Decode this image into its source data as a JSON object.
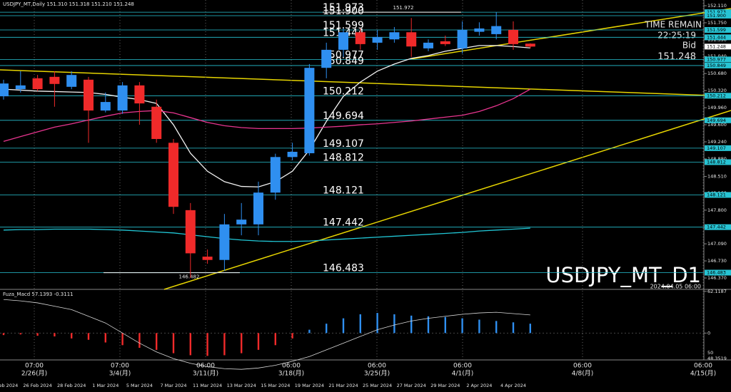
{
  "chart_data": [
    {
      "type": "candlestick",
      "title": "USDJPY_MT,Daily",
      "last_labels": [
        "151.310",
        "151.318",
        "151.210",
        "151.248"
      ],
      "categories": [
        "22 Feb 2024",
        null,
        "26 Feb 2024",
        null,
        "28 Feb 2024",
        null,
        "1 Mar 2024",
        null,
        "5 Mar 2024",
        null,
        "7 Mar 2024",
        null,
        "11 Mar 2024",
        null,
        "13 Mar 2024",
        null,
        "15 Mar 2024",
        null,
        "19 Mar 2024",
        null,
        "21 Mar 2024",
        null,
        "25 Mar 2024",
        null,
        "27 Mar 2024",
        null,
        "29 Mar 2024",
        null,
        "2 Apr 2024",
        null,
        "4 Apr 2024",
        null
      ],
      "open": [
        150.2,
        150.35,
        150.58,
        150.61,
        150.4,
        150.55,
        149.9,
        149.9,
        150.43,
        149.98,
        149.22,
        147.8,
        146.82,
        146.75,
        147.5,
        147.5,
        148.17,
        148.92,
        149.0,
        150.8,
        151.18,
        151.55,
        151.33,
        151.4,
        151.55,
        151.21,
        151.36,
        151.21,
        151.56,
        151.51,
        151.6,
        151.31
      ],
      "high": [
        150.55,
        150.73,
        150.65,
        150.73,
        150.73,
        150.61,
        150.28,
        150.5,
        150.5,
        150.13,
        149.3,
        147.95,
        146.97,
        147.72,
        147.95,
        148.4,
        148.99,
        149.22,
        150.88,
        151.33,
        151.63,
        151.63,
        151.6,
        151.66,
        151.85,
        151.4,
        151.48,
        151.78,
        151.76,
        151.97,
        151.78,
        151.318
      ],
      "low": [
        150.13,
        150.28,
        150.31,
        149.98,
        150.35,
        149.22,
        149.86,
        149.83,
        149.6,
        149.22,
        147.72,
        146.37,
        146.67,
        146.52,
        147.27,
        147.27,
        148.02,
        148.85,
        148.95,
        150.58,
        151.03,
        151.18,
        151.18,
        151.33,
        151.03,
        151.15,
        151.26,
        151.1,
        151.48,
        151.4,
        151.18,
        151.21
      ],
      "close": [
        150.47,
        150.43,
        150.35,
        150.46,
        150.65,
        149.9,
        150.08,
        150.43,
        150.05,
        149.3,
        147.87,
        146.89,
        146.75,
        147.5,
        147.6,
        148.17,
        148.92,
        149.03,
        150.8,
        151.18,
        151.55,
        151.3,
        151.45,
        151.55,
        151.25,
        151.33,
        151.3,
        151.6,
        151.63,
        151.68,
        151.3,
        151.248
      ],
      "up_color": "#2f8ff0",
      "down_color": "#f02a2a",
      "ylim": [
        146.13,
        152.23
      ],
      "yticks": [
        {
          "value": 152.11,
          "label": "152.110"
        },
        {
          "value": 151.75,
          "label": "151.750"
        },
        {
          "value": 151.39,
          "label": "151.390"
        },
        {
          "value": 151.04,
          "label": "151.040"
        },
        {
          "value": 150.68,
          "label": "150.680"
        },
        {
          "value": 150.32,
          "label": "150.320"
        },
        {
          "value": 149.96,
          "label": "149.960"
        },
        {
          "value": 149.6,
          "label": "149.600"
        },
        {
          "value": 149.24,
          "label": "149.240"
        },
        {
          "value": 148.88,
          "label": "148.880"
        },
        {
          "value": 148.51,
          "label": "148.510"
        },
        {
          "value": 148.16,
          "label": "148.160"
        },
        {
          "value": 147.8,
          "label": "147.800"
        },
        {
          "value": 147.44,
          "label": "147.440"
        },
        {
          "value": 147.09,
          "label": "147.090"
        },
        {
          "value": 146.73,
          "label": "146.730"
        },
        {
          "value": 146.37,
          "label": "146.370"
        }
      ],
      "levels": [
        151.973,
        {
          "value": 151.9,
          "label": "151.900"
        },
        151.599,
        151.444,
        150.977,
        150.849,
        150.212,
        149.694,
        149.107,
        148.812,
        148.121,
        147.442,
        146.483
      ],
      "level_color": "#27c4d4",
      "lines": [
        {
          "color": "#f2f2f2",
          "values": [
            150.35,
            150.33,
            150.31,
            150.3,
            150.29,
            150.28,
            150.24,
            150.18,
            150.13,
            150.05,
            149.6,
            149.0,
            148.62,
            148.4,
            148.3,
            148.29,
            148.4,
            148.62,
            149.07,
            149.67,
            150.2,
            150.5,
            150.73,
            150.88,
            151.0,
            151.06,
            151.15,
            151.21,
            151.27,
            151.27,
            151.25,
            151.22
          ]
        },
        {
          "color": "#e8358f",
          "values": [
            149.25,
            149.35,
            149.45,
            149.55,
            149.62,
            149.7,
            149.78,
            149.85,
            149.88,
            149.9,
            149.85,
            149.75,
            149.65,
            149.58,
            149.54,
            149.52,
            149.52,
            149.52,
            149.53,
            149.55,
            149.57,
            149.6,
            149.62,
            149.65,
            149.68,
            149.72,
            149.76,
            149.8,
            149.88,
            150.0,
            150.15,
            150.35
          ]
        },
        {
          "color": "#21c7d6",
          "values": [
            147.38,
            147.39,
            147.39,
            147.4,
            147.4,
            147.4,
            147.39,
            147.38,
            147.36,
            147.34,
            147.32,
            147.28,
            147.24,
            147.2,
            147.17,
            147.15,
            147.14,
            147.14,
            147.15,
            147.17,
            147.19,
            147.21,
            147.23,
            147.25,
            147.27,
            147.29,
            147.31,
            147.33,
            147.36,
            147.38,
            147.4,
            147.42
          ]
        }
      ],
      "high_marker": 151.972,
      "low_marker": 146.482,
      "annotations": {
        "time_remain_label": "TIME REMAIN",
        "time_remain": "22:25:19",
        "bid_label": "Bid",
        "bid": 151.248,
        "watermark": "USDJPY_MT_D1",
        "timestamp": "2024.04.05 06:00"
      },
      "session_labels": [
        {
          "time": "07:00",
          "date": "2/26(月)"
        },
        {
          "time": "07:00",
          "date": "3/4(月)"
        },
        {
          "time": "06:00",
          "date": "3/11(月)"
        },
        {
          "time": "06:00",
          "date": "3/18(月)"
        },
        {
          "time": "06:00",
          "date": "3/25(月)"
        },
        {
          "time": "06:00",
          "date": "4/1(月)"
        },
        {
          "time": "06:00",
          "date": "4/8(月)"
        },
        {
          "time": "06:00",
          "date": "4/15(月)"
        }
      ]
    },
    {
      "type": "bar",
      "title": "Fuza_Macd",
      "shown_values": [
        57.1393,
        -0.3111
      ],
      "values": [
        -3,
        -2,
        -4,
        -5,
        -8,
        -10,
        -14,
        -18,
        -22,
        -25,
        -30,
        -33,
        -34,
        -33,
        -30,
        -25,
        -18,
        -8,
        5,
        14,
        22,
        28,
        30,
        28,
        26,
        25,
        24,
        22,
        20,
        18,
        16,
        14
      ],
      "signal": [
        50,
        48,
        45,
        40,
        35,
        25,
        15,
        0,
        -15,
        -28,
        -38,
        -45,
        -50,
        -53,
        -54,
        -52,
        -48,
        -42,
        -35,
        -25,
        -15,
        -5,
        5,
        12,
        18,
        22,
        25,
        28,
        30,
        31,
        29,
        27
      ],
      "pos_color": "#2f8ff0",
      "neg_color": "#f02a2a",
      "signal_color": "#d8d8d8",
      "ylim": [
        -40,
        63
      ],
      "yticks": [
        62.1187,
        0
      ],
      "extra_labels": [
        "50",
        "48.3519"
      ]
    }
  ]
}
